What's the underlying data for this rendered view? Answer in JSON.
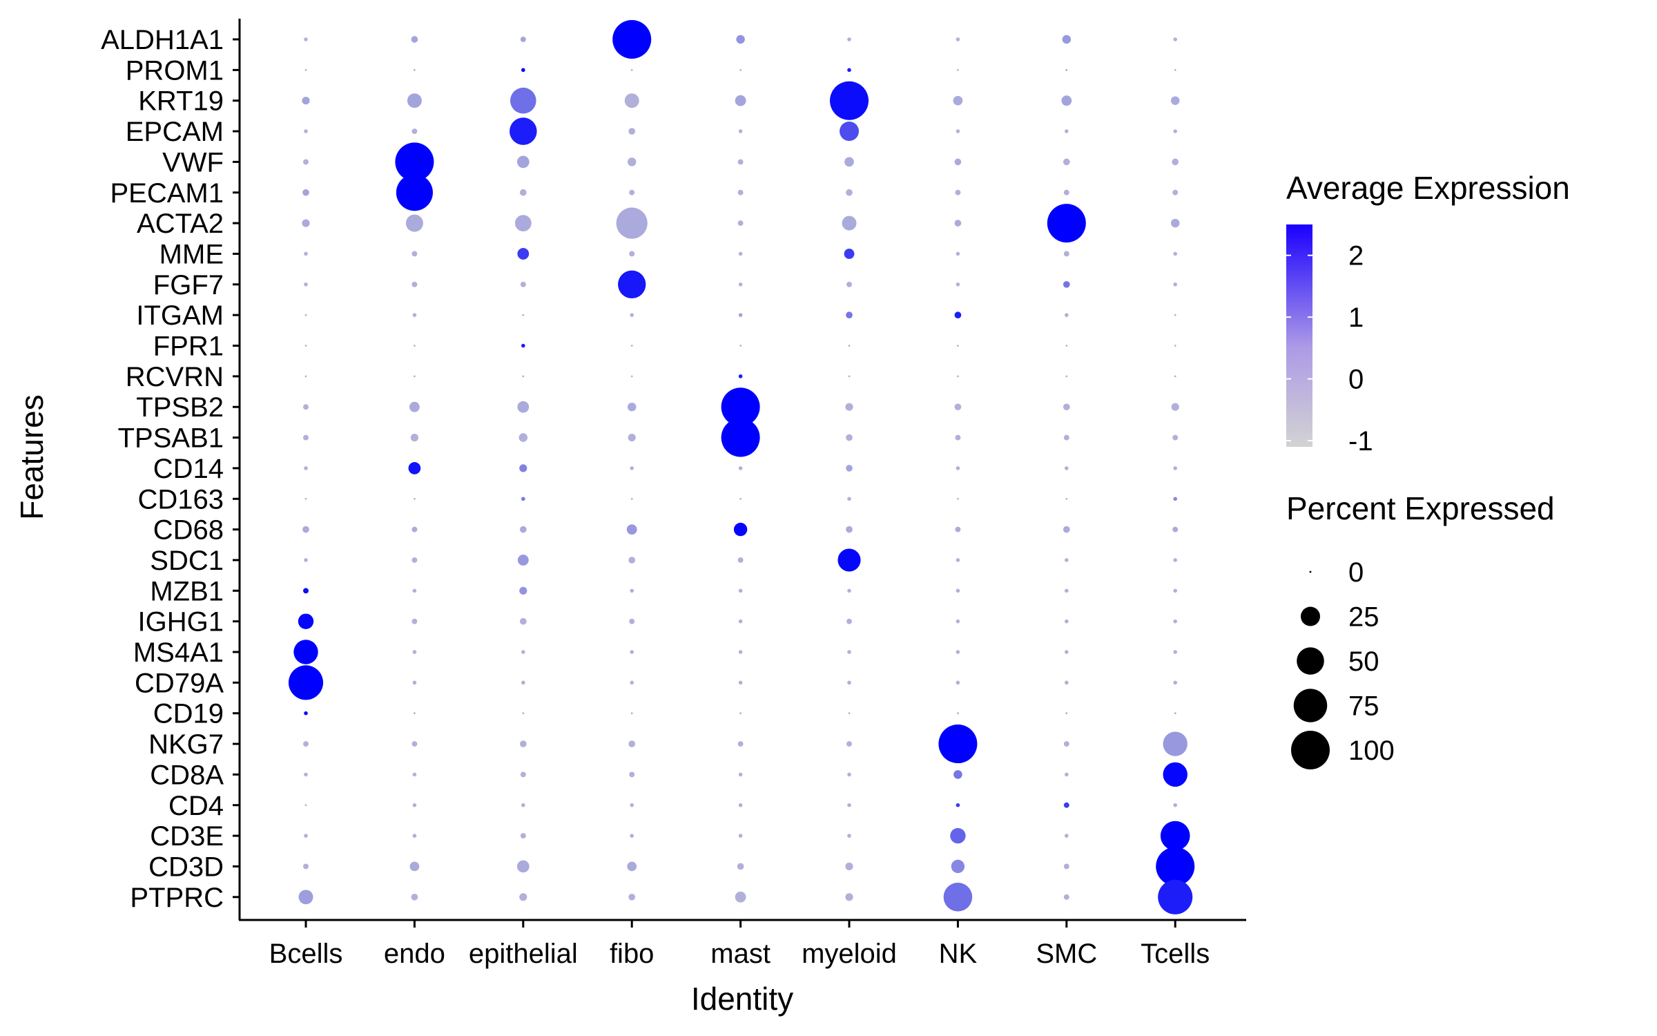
{
  "chart_data": {
    "type": "dotplot",
    "xlabel": "Identity",
    "ylabel": "Features",
    "identities": [
      "Bcells",
      "endo",
      "epithelial",
      "fibo",
      "mast",
      "myeloid",
      "NK",
      "SMC",
      "Tcells"
    ],
    "features": [
      "ALDH1A1",
      "PROM1",
      "KRT19",
      "EPCAM",
      "VWF",
      "PECAM1",
      "ACTA2",
      "MME",
      "FGF7",
      "ITGAM",
      "FPR1",
      "RCVRN",
      "TPSB2",
      "TPSAB1",
      "CD14",
      "CD163",
      "CD68",
      "SDC1",
      "MZB1",
      "IGHG1",
      "MS4A1",
      "CD79A",
      "CD19",
      "NKG7",
      "CD8A",
      "CD4",
      "CD3E",
      "CD3D",
      "PTPRC"
    ],
    "avg_expression_scale": {
      "title": "Average Expression",
      "range": [
        -1.1,
        2.5
      ],
      "ticks": [
        -1,
        0,
        1,
        2
      ],
      "tick_labels": [
        "-1",
        "0",
        "1",
        "2"
      ],
      "color_low": "#d3d3d3",
      "color_high": "#0000ff"
    },
    "percent_scale": {
      "title": "Percent Expressed",
      "range": [
        0,
        100
      ],
      "ticks": [
        0,
        25,
        50,
        75,
        100
      ],
      "tick_labels": [
        "0",
        "25",
        "50",
        "75",
        "100"
      ]
    },
    "points": [
      {
        "feature": "ALDH1A1",
        "values": [
          [
            1,
            -0.5
          ],
          [
            3,
            -0.3
          ],
          [
            2,
            -0.3
          ],
          [
            100,
            2.5
          ],
          [
            5,
            0.0
          ],
          [
            1,
            -0.5
          ],
          [
            1,
            -0.5
          ],
          [
            5,
            -0.1
          ],
          [
            1,
            -0.5
          ]
        ]
      },
      {
        "feature": "PROM1",
        "values": [
          [
            0,
            -0.5
          ],
          [
            0,
            -0.5
          ],
          [
            1,
            2.5
          ],
          [
            0,
            -0.5
          ],
          [
            0,
            -0.5
          ],
          [
            1,
            2.0
          ],
          [
            0,
            -0.5
          ],
          [
            0,
            -0.3
          ],
          [
            0,
            -0.5
          ]
        ]
      },
      {
        "feature": "KRT19",
        "values": [
          [
            4,
            -0.3
          ],
          [
            14,
            -0.3
          ],
          [
            45,
            0.6
          ],
          [
            14,
            -0.5
          ],
          [
            8,
            -0.3
          ],
          [
            100,
            2.3
          ],
          [
            6,
            -0.4
          ],
          [
            7,
            -0.3
          ],
          [
            5,
            -0.4
          ]
        ]
      },
      {
        "feature": "EPCAM",
        "values": [
          [
            1,
            -0.5
          ],
          [
            2,
            -0.5
          ],
          [
            50,
            2.0
          ],
          [
            3,
            -0.5
          ],
          [
            1,
            -0.5
          ],
          [
            25,
            1.2
          ],
          [
            1,
            -0.5
          ],
          [
            1,
            -0.5
          ],
          [
            1,
            -0.5
          ]
        ]
      },
      {
        "feature": "VWF",
        "values": [
          [
            2,
            -0.5
          ],
          [
            100,
            2.5
          ],
          [
            10,
            -0.3
          ],
          [
            5,
            -0.5
          ],
          [
            2,
            -0.5
          ],
          [
            6,
            -0.4
          ],
          [
            3,
            -0.4
          ],
          [
            3,
            -0.5
          ],
          [
            3,
            -0.5
          ]
        ]
      },
      {
        "feature": "PECAM1",
        "values": [
          [
            3,
            -0.3
          ],
          [
            90,
            2.5
          ],
          [
            3,
            -0.5
          ],
          [
            2,
            -0.5
          ],
          [
            2,
            -0.5
          ],
          [
            3,
            -0.5
          ],
          [
            2,
            -0.5
          ],
          [
            2,
            -0.5
          ],
          [
            2,
            -0.5
          ]
        ]
      },
      {
        "feature": "ACTA2",
        "values": [
          [
            4,
            -0.4
          ],
          [
            20,
            -0.4
          ],
          [
            18,
            -0.4
          ],
          [
            65,
            -0.4
          ],
          [
            2,
            -0.5
          ],
          [
            14,
            -0.4
          ],
          [
            3,
            -0.4
          ],
          [
            100,
            2.5
          ],
          [
            5,
            -0.4
          ]
        ]
      },
      {
        "feature": "MME",
        "values": [
          [
            1,
            -0.5
          ],
          [
            2,
            -0.5
          ],
          [
            9,
            1.5
          ],
          [
            2,
            -0.5
          ],
          [
            1,
            -0.5
          ],
          [
            7,
            1.5
          ],
          [
            1,
            -0.5
          ],
          [
            2,
            -0.5
          ],
          [
            1,
            -0.5
          ]
        ]
      },
      {
        "feature": "FGF7",
        "values": [
          [
            1,
            -0.5
          ],
          [
            2,
            -0.5
          ],
          [
            2,
            -0.5
          ],
          [
            52,
            2.1
          ],
          [
            1,
            -0.5
          ],
          [
            2,
            -0.5
          ],
          [
            1,
            -0.5
          ],
          [
            3,
            0.5
          ],
          [
            1,
            -0.5
          ]
        ]
      },
      {
        "feature": "ITGAM",
        "values": [
          [
            0,
            -0.5
          ],
          [
            1,
            -0.5
          ],
          [
            0,
            -0.5
          ],
          [
            1,
            -0.5
          ],
          [
            1,
            -0.3
          ],
          [
            3,
            0.5
          ],
          [
            3,
            2.0
          ],
          [
            1,
            -0.5
          ],
          [
            0,
            -0.5
          ]
        ]
      },
      {
        "feature": "FPR1",
        "values": [
          [
            0,
            -0.5
          ],
          [
            0,
            -0.5
          ],
          [
            1,
            2.0
          ],
          [
            0,
            -0.5
          ],
          [
            0,
            -0.5
          ],
          [
            0,
            -0.5
          ],
          [
            0,
            -0.5
          ],
          [
            0,
            -0.5
          ],
          [
            0,
            -0.5
          ]
        ]
      },
      {
        "feature": "RCVRN",
        "values": [
          [
            0,
            -0.5
          ],
          [
            0,
            -0.5
          ],
          [
            0,
            -0.5
          ],
          [
            0,
            -0.5
          ],
          [
            1,
            2.0
          ],
          [
            0,
            -0.5
          ],
          [
            0,
            -0.5
          ],
          [
            0,
            -0.5
          ],
          [
            0,
            -0.5
          ]
        ]
      },
      {
        "feature": "TPSB2",
        "values": [
          [
            2,
            -0.5
          ],
          [
            7,
            -0.4
          ],
          [
            9,
            -0.4
          ],
          [
            5,
            -0.4
          ],
          [
            100,
            2.5
          ],
          [
            4,
            -0.5
          ],
          [
            3,
            -0.5
          ],
          [
            3,
            -0.5
          ],
          [
            4,
            -0.5
          ]
        ]
      },
      {
        "feature": "TPSAB1",
        "values": [
          [
            2,
            -0.5
          ],
          [
            4,
            -0.5
          ],
          [
            5,
            -0.5
          ],
          [
            4,
            -0.5
          ],
          [
            100,
            2.5
          ],
          [
            3,
            -0.5
          ],
          [
            2,
            -0.5
          ],
          [
            2,
            -0.5
          ],
          [
            2,
            -0.5
          ]
        ]
      },
      {
        "feature": "CD14",
        "values": [
          [
            1,
            -0.5
          ],
          [
            10,
            2.2
          ],
          [
            4,
            0.3
          ],
          [
            1,
            -0.5
          ],
          [
            1,
            -0.5
          ],
          [
            3,
            -0.3
          ],
          [
            1,
            -0.5
          ],
          [
            1,
            -0.5
          ],
          [
            1,
            -0.5
          ]
        ]
      },
      {
        "feature": "CD163",
        "values": [
          [
            0,
            -0.5
          ],
          [
            0,
            -0.5
          ],
          [
            1,
            0.5
          ],
          [
            0,
            -0.5
          ],
          [
            0,
            -0.5
          ],
          [
            1,
            -0.5
          ],
          [
            0,
            -0.5
          ],
          [
            0,
            -0.5
          ],
          [
            1,
            0.2
          ]
        ]
      },
      {
        "feature": "CD68",
        "values": [
          [
            3,
            -0.4
          ],
          [
            2,
            -0.4
          ],
          [
            3,
            -0.4
          ],
          [
            7,
            -0.1
          ],
          [
            12,
            2.4
          ],
          [
            3,
            -0.4
          ],
          [
            2,
            -0.4
          ],
          [
            3,
            -0.4
          ],
          [
            2,
            -0.4
          ]
        ]
      },
      {
        "feature": "SDC1",
        "values": [
          [
            1,
            -0.5
          ],
          [
            2,
            -0.5
          ],
          [
            8,
            -0.1
          ],
          [
            3,
            -0.5
          ],
          [
            2,
            -0.5
          ],
          [
            35,
            2.4
          ],
          [
            1,
            -0.5
          ],
          [
            1,
            -0.5
          ],
          [
            1,
            -0.5
          ]
        ]
      },
      {
        "feature": "MZB1",
        "values": [
          [
            2,
            2.3
          ],
          [
            1,
            -0.5
          ],
          [
            4,
            0.0
          ],
          [
            1,
            -0.5
          ],
          [
            1,
            -0.5
          ],
          [
            1,
            -0.5
          ],
          [
            1,
            -0.5
          ],
          [
            1,
            -0.5
          ],
          [
            1,
            -0.5
          ]
        ]
      },
      {
        "feature": "IGHG1",
        "values": [
          [
            16,
            2.4
          ],
          [
            2,
            -0.5
          ],
          [
            3,
            -0.5
          ],
          [
            2,
            -0.5
          ],
          [
            1,
            -0.5
          ],
          [
            2,
            -0.5
          ],
          [
            1,
            -0.5
          ],
          [
            1,
            -0.5
          ],
          [
            1,
            -0.5
          ]
        ]
      },
      {
        "feature": "MS4A1",
        "values": [
          [
            40,
            2.5
          ],
          [
            1,
            -0.5
          ],
          [
            1,
            -0.5
          ],
          [
            1,
            -0.5
          ],
          [
            1,
            -0.5
          ],
          [
            1,
            -0.5
          ],
          [
            1,
            -0.5
          ],
          [
            1,
            -0.5
          ],
          [
            1,
            -0.5
          ]
        ]
      },
      {
        "feature": "CD79A",
        "values": [
          [
            80,
            2.5
          ],
          [
            1,
            -0.5
          ],
          [
            1,
            -0.5
          ],
          [
            1,
            -0.5
          ],
          [
            1,
            -0.5
          ],
          [
            1,
            -0.5
          ],
          [
            1,
            -0.5
          ],
          [
            1,
            -0.5
          ],
          [
            1,
            -0.5
          ]
        ]
      },
      {
        "feature": "CD19",
        "values": [
          [
            1,
            2.3
          ],
          [
            0,
            -0.5
          ],
          [
            0,
            -0.5
          ],
          [
            0,
            -0.5
          ],
          [
            0,
            -0.5
          ],
          [
            0,
            -0.5
          ],
          [
            0,
            -0.5
          ],
          [
            0,
            -0.5
          ],
          [
            0,
            -0.5
          ]
        ]
      },
      {
        "feature": "NKG7",
        "values": [
          [
            2,
            -0.5
          ],
          [
            2,
            -0.5
          ],
          [
            3,
            -0.5
          ],
          [
            3,
            -0.5
          ],
          [
            2,
            -0.5
          ],
          [
            2,
            -0.5
          ],
          [
            100,
            2.5
          ],
          [
            2,
            -0.5
          ],
          [
            40,
            -0.1
          ]
        ]
      },
      {
        "feature": "CD8A",
        "values": [
          [
            1,
            -0.5
          ],
          [
            1,
            -0.5
          ],
          [
            2,
            -0.5
          ],
          [
            2,
            -0.5
          ],
          [
            1,
            -0.5
          ],
          [
            1,
            -0.5
          ],
          [
            5,
            0.5
          ],
          [
            1,
            -0.5
          ],
          [
            40,
            2.4
          ]
        ]
      },
      {
        "feature": "CD4",
        "values": [
          [
            0,
            -0.5
          ],
          [
            1,
            -0.5
          ],
          [
            1,
            -0.5
          ],
          [
            1,
            -0.5
          ],
          [
            1,
            -0.5
          ],
          [
            1,
            -0.5
          ],
          [
            1,
            1.5
          ],
          [
            2,
            1.5
          ],
          [
            1,
            -0.5
          ]
        ]
      },
      {
        "feature": "CD3E",
        "values": [
          [
            1,
            -0.5
          ],
          [
            1,
            -0.5
          ],
          [
            2,
            -0.5
          ],
          [
            1,
            -0.5
          ],
          [
            1,
            -0.5
          ],
          [
            1,
            -0.5
          ],
          [
            16,
            0.8
          ],
          [
            1,
            -0.5
          ],
          [
            58,
            2.5
          ]
        ]
      },
      {
        "feature": "CD3D",
        "values": [
          [
            2,
            -0.5
          ],
          [
            6,
            -0.4
          ],
          [
            10,
            -0.4
          ],
          [
            6,
            -0.4
          ],
          [
            3,
            -0.5
          ],
          [
            4,
            -0.5
          ],
          [
            12,
            0.2
          ],
          [
            2,
            -0.5
          ],
          [
            100,
            2.5
          ]
        ]
      },
      {
        "feature": "PTPRC",
        "values": [
          [
            14,
            -0.2
          ],
          [
            3,
            -0.5
          ],
          [
            4,
            -0.5
          ],
          [
            3,
            -0.5
          ],
          [
            8,
            -0.5
          ],
          [
            4,
            -0.5
          ],
          [
            55,
            0.6
          ],
          [
            2,
            -0.5
          ],
          [
            80,
            2.0
          ]
        ]
      }
    ]
  }
}
